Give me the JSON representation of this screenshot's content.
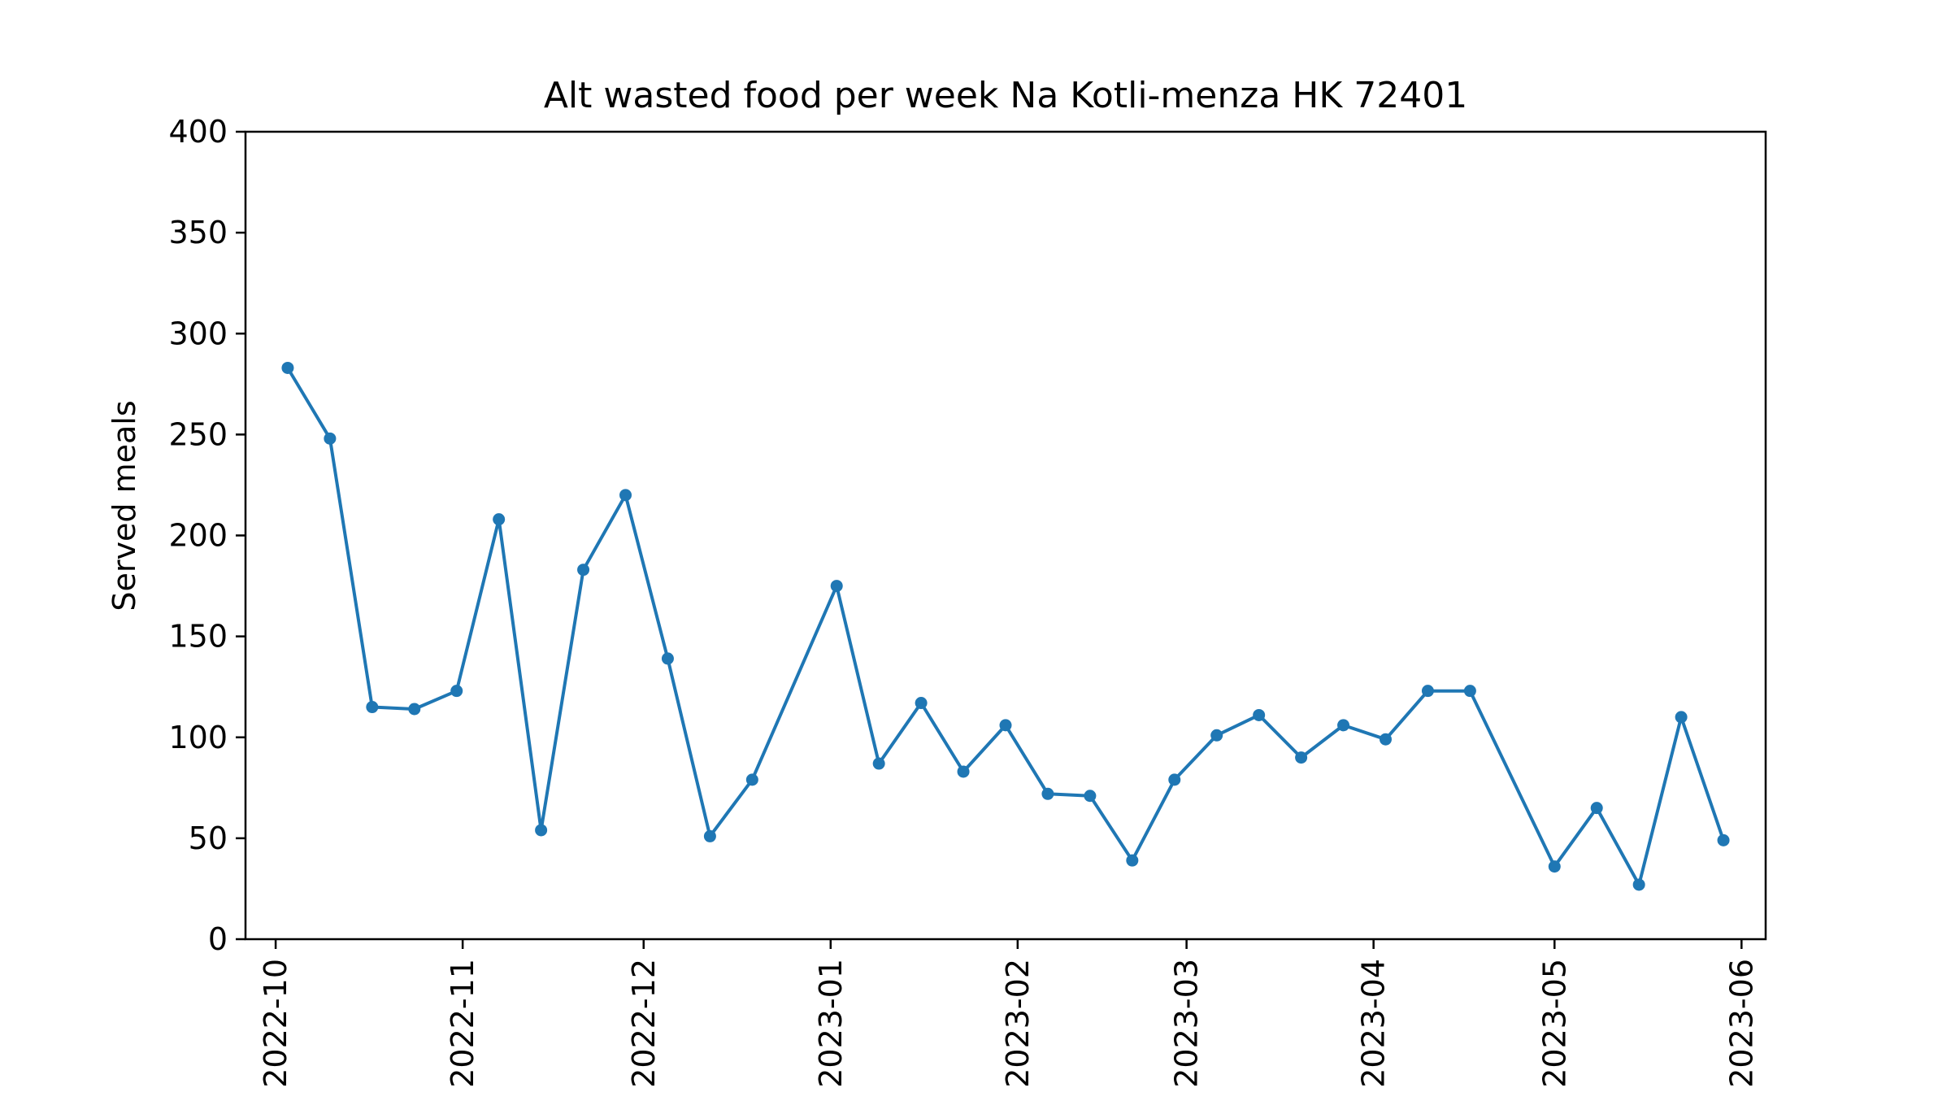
{
  "chart_data": {
    "type": "line",
    "title": "Alt wasted food per week Na Kotli-menza HK 72401",
    "xlabel": "",
    "ylabel": "Served meals",
    "ylim": [
      0,
      400
    ],
    "xlim": [
      "2022-09-26",
      "2023-06-05"
    ],
    "yticks": [
      0,
      50,
      100,
      150,
      200,
      250,
      300,
      350,
      400
    ],
    "xticks": [
      "2022-10-01",
      "2022-11-01",
      "2022-12-01",
      "2023-01-01",
      "2023-02-01",
      "2023-03-01",
      "2023-04-01",
      "2023-05-01",
      "2023-06-01"
    ],
    "xtick_labels": [
      "2022-10",
      "2022-11",
      "2022-12",
      "2023-01",
      "2023-02",
      "2023-03",
      "2023-04",
      "2023-05",
      "2023-06"
    ],
    "grid": false,
    "line_color": "#1f77b4",
    "series": [
      {
        "name": "",
        "x": [
          "2022-10-03",
          "2022-10-10",
          "2022-10-17",
          "2022-10-24",
          "2022-10-31",
          "2022-11-07",
          "2022-11-14",
          "2022-11-21",
          "2022-11-28",
          "2022-12-05",
          "2022-12-12",
          "2022-12-19",
          "2023-01-02",
          "2023-01-09",
          "2023-01-16",
          "2023-01-23",
          "2023-01-30",
          "2023-02-06",
          "2023-02-13",
          "2023-02-20",
          "2023-02-27",
          "2023-03-06",
          "2023-03-13",
          "2023-03-20",
          "2023-03-27",
          "2023-04-03",
          "2023-04-10",
          "2023-04-17",
          "2023-05-01",
          "2023-05-08",
          "2023-05-15",
          "2023-05-22",
          "2023-05-29"
        ],
        "values": [
          283,
          248,
          115,
          114,
          123,
          208,
          54,
          183,
          220,
          139,
          51,
          79,
          175,
          87,
          117,
          83,
          106,
          72,
          71,
          39,
          79,
          101,
          111,
          90,
          106,
          99,
          123,
          123,
          36,
          65,
          27,
          110,
          49
        ]
      }
    ]
  }
}
